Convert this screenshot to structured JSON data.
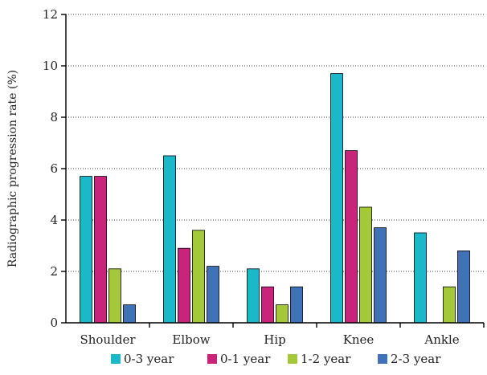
{
  "chart_data": {
    "type": "bar",
    "categories": [
      "Shoulder",
      "Elbow",
      "Hip",
      "Knee",
      "Ankle"
    ],
    "series": [
      {
        "name": "0-3 year",
        "color": "#1ab8c8",
        "values": [
          5.7,
          6.5,
          2.1,
          9.7,
          3.5
        ]
      },
      {
        "name": "0-1 year",
        "color": "#c8257a",
        "values": [
          5.7,
          2.9,
          1.4,
          6.7,
          0
        ]
      },
      {
        "name": "1-2 year",
        "color": "#a3c83a",
        "values": [
          2.1,
          3.6,
          0.7,
          4.5,
          1.4
        ]
      },
      {
        "name": "2-3 year",
        "color": "#3f72b8",
        "values": [
          0.7,
          2.2,
          1.4,
          3.7,
          2.8
        ]
      }
    ],
    "ylabel": "Radiographic progression rate (%)",
    "xlabel": "",
    "ylim": [
      0,
      12
    ],
    "yticks": [
      "0",
      "2",
      "4",
      "6",
      "8",
      "10",
      "12"
    ],
    "grid": true,
    "legend_position": "bottom"
  }
}
